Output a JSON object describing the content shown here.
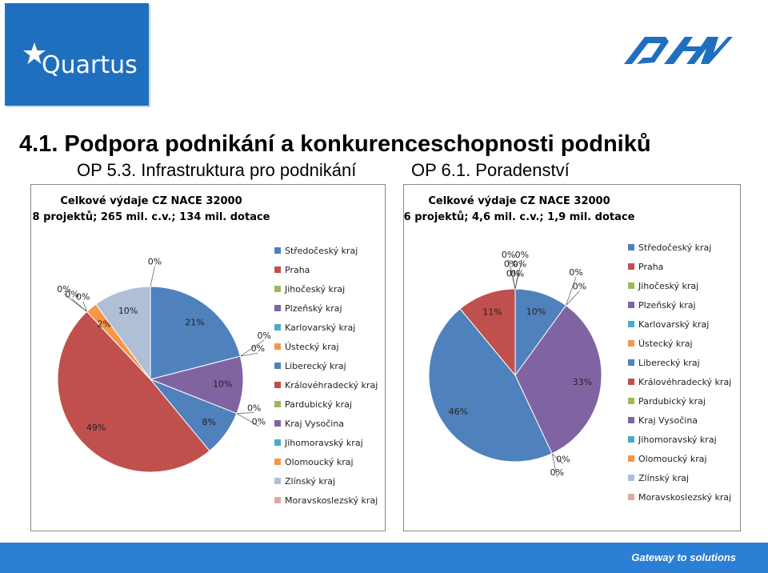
{
  "header": {
    "logo_text": "Quartus",
    "logo_icon": "star-icon",
    "right_logo": "DHV"
  },
  "title": "4.1. Podpora podnikání a konkurenceschopnosti podniků",
  "subtitles": {
    "left": "OP 5.3. Infrastruktura pro podnikání",
    "right": "OP 6.1. Poradenství"
  },
  "regions": [
    "Středočeský kraj",
    "Praha",
    "Jihočeský kraj",
    "Plzeňský kraj",
    "Karlovarský kraj",
    "Ústecký kraj",
    "Liberecký kraj",
    "Královéhradecký kraj",
    "Pardubický kraj",
    "Kraj Vysočina",
    "Jihomoravský kraj",
    "Olomoucký kraj",
    "Zlínský kraj",
    "Moravskoslezský kraj"
  ],
  "colors": [
    "#4f81bd",
    "#c0504d",
    "#9bbb59",
    "#8064a2",
    "#4bacc6",
    "#f79646",
    "#4f81bd",
    "#c0504d",
    "#9bbb59",
    "#8064a2",
    "#4bacc6",
    "#f79646",
    "#b0bfd6",
    "#e0a8a6"
  ],
  "chart_data": [
    {
      "type": "pie",
      "title": "Celkové výdaje CZ NACE 32000",
      "subtitle": "8 projektů; 265 mil. c.v.; 134 mil. dotace",
      "values": [
        21,
        0,
        0,
        10,
        0,
        0,
        8,
        49,
        0,
        0,
        0,
        2,
        10,
        0
      ],
      "labels": [
        "21%",
        "0%",
        "0%",
        "10%",
        "0%",
        "0%",
        "8%",
        "49%",
        "0%",
        "0%",
        "0%",
        "2%",
        "10%",
        "0%"
      ]
    },
    {
      "type": "pie",
      "title": "Celkové výdaje CZ NACE 32000",
      "subtitle": "6 projektů; 4,6 mil. c.v.; 1,9 mil. dotace",
      "values": [
        10,
        0,
        0,
        33,
        0,
        0,
        46,
        11,
        0,
        0,
        0,
        0,
        0,
        0
      ],
      "labels": [
        "10%",
        "0%",
        "0%",
        "33%",
        "0%",
        "0%",
        "46%",
        "11%",
        "0%",
        "0%",
        "0%",
        "0%",
        "0%",
        "0%"
      ]
    }
  ],
  "footer": {
    "tagline": "Gateway to solutions"
  }
}
